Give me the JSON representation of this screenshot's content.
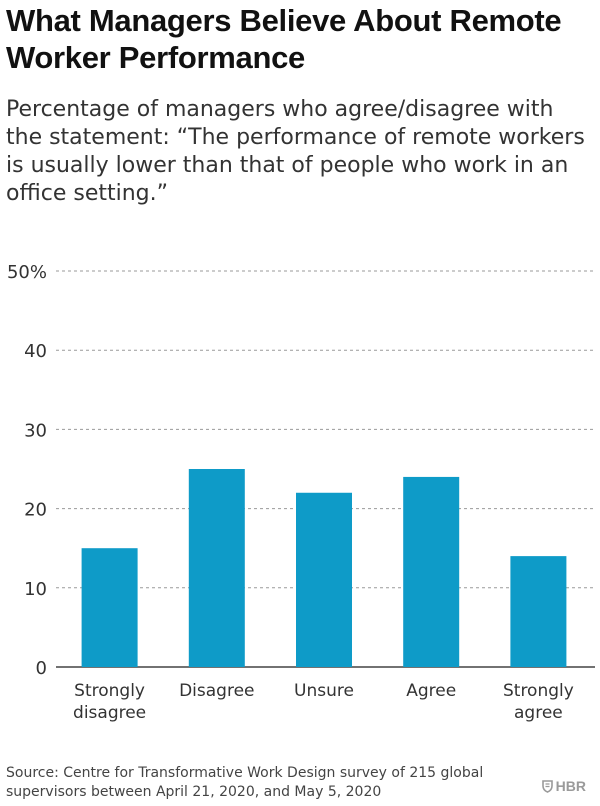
{
  "title": "What Managers Believe About Remote Worker Performance",
  "subtitle": "Percentage of managers who agree/disagree with the statement: “The performance of remote workers is usually lower than that of people who work in an office setting.”",
  "source": "Source: Centre for Transformative Work Design survey of 215 global supervisors between April 21, 2020, and May 5, 2020",
  "logo": {
    "text": "HBR",
    "icon": "shield-icon"
  },
  "colors": {
    "bar": "#0e9bc8",
    "grid": "#9a9a9a",
    "axis": "#444444",
    "text": "#333333"
  },
  "chart_data": {
    "type": "bar",
    "categories": [
      "Strongly disagree",
      "Disagree",
      "Unsure",
      "Agree",
      "Strongly agree"
    ],
    "values": [
      15,
      25,
      22,
      24,
      14
    ],
    "title": "What Managers Believe About Remote Worker Performance",
    "xlabel": "",
    "ylabel": "",
    "ylim": [
      0,
      50
    ],
    "yticks": [
      0,
      10,
      20,
      30,
      40,
      50
    ],
    "ytick_labels": [
      "0",
      "10",
      "20",
      "30",
      "40",
      "50%"
    ],
    "grid": true,
    "legend": "none"
  }
}
